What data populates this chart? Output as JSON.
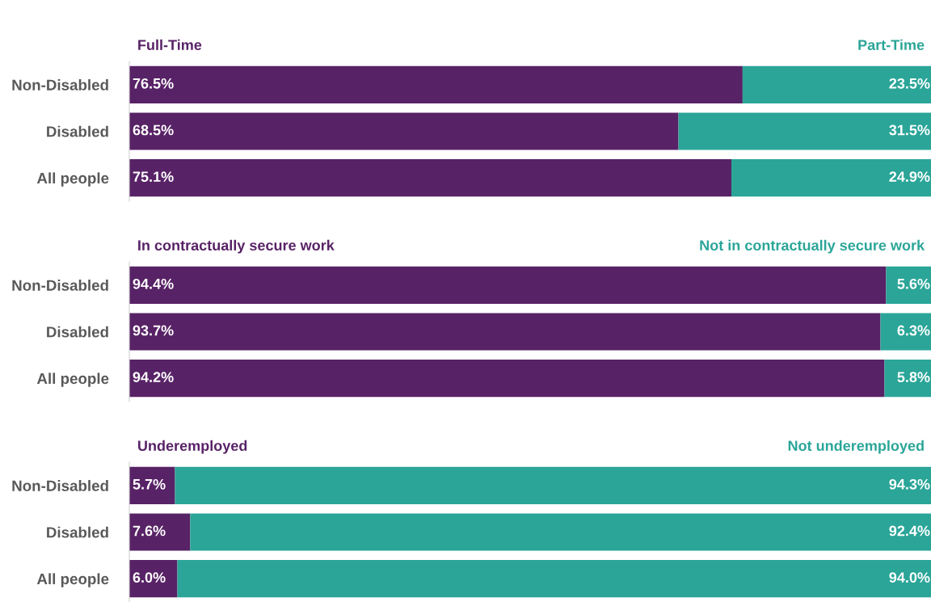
{
  "chart_data": [
    {
      "type": "bar",
      "orientation": "horizontal",
      "stacked": true,
      "categories": [
        "Non-Disabled",
        "Disabled",
        "All people"
      ],
      "tick_labels": "y",
      "series": [
        {
          "name": "Full-Time",
          "color": "#582266",
          "values": [
            76.5,
            68.5,
            75.1
          ],
          "value_labels": [
            "76.5%",
            "68.5%",
            "75.1%"
          ]
        },
        {
          "name": "Part-Time",
          "color": "#2aa598",
          "values": [
            23.5,
            31.5,
            24.9
          ],
          "value_labels": [
            "23.5%",
            "31.5%",
            "24.9%"
          ]
        }
      ]
    },
    {
      "type": "bar",
      "orientation": "horizontal",
      "stacked": true,
      "categories": [
        "Non-Disabled",
        "Disabled",
        "All people"
      ],
      "tick_labels": "y",
      "series": [
        {
          "name": "In contractually secure work",
          "color": "#582266",
          "values": [
            94.4,
            93.7,
            94.2
          ],
          "value_labels": [
            "94.4%",
            "93.7%",
            "94.2%"
          ]
        },
        {
          "name": "Not in contractually secure work",
          "color": "#2aa598",
          "values": [
            5.6,
            6.3,
            5.8
          ],
          "value_labels": [
            "5.6%",
            "6.3%",
            "5.8%"
          ]
        }
      ]
    },
    {
      "type": "bar",
      "orientation": "horizontal",
      "stacked": true,
      "categories": [
        "Non-Disabled",
        "Disabled",
        "All people"
      ],
      "tick_labels": "y",
      "series": [
        {
          "name": "Underemployed",
          "color": "#582266",
          "values": [
            5.7,
            7.6,
            6.0
          ],
          "value_labels": [
            "5.7%",
            "7.6%",
            "6.0%"
          ]
        },
        {
          "name": "Not underemployed",
          "color": "#2aa598",
          "values": [
            94.3,
            92.4,
            94.0
          ],
          "value_labels": [
            "94.3%",
            "92.4%",
            "94.0%"
          ]
        }
      ]
    }
  ]
}
